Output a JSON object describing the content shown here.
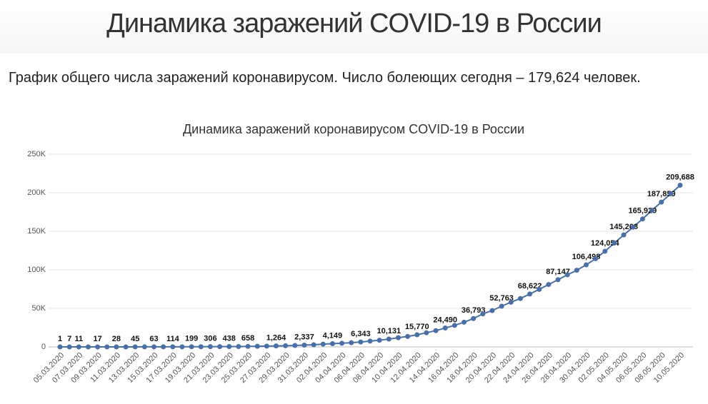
{
  "page": {
    "title": "Динамика заражений COVID-19 в России",
    "subtitle": "График общего числа заражений коронавирусом. Число болеющих сегодня – 179,624 человек."
  },
  "chart_data": {
    "type": "line",
    "title": "Динамика заражений коронавирусом COVID-19 в России",
    "categories": [
      "05.03.2020",
      null,
      "07.03.2020",
      null,
      "09.03.2020",
      null,
      "11.03.2020",
      null,
      "13.03.2020",
      null,
      "15.03.2020",
      null,
      "17.03.2020",
      null,
      "19.03.2020",
      null,
      "21.03.2020",
      null,
      "23.03.2020",
      null,
      "25.03.2020",
      null,
      "27.03.2020",
      null,
      "29.03.2020",
      null,
      "31.03.2020",
      null,
      "02.04.2020",
      null,
      "04.04.2020",
      null,
      "06.04.2020",
      null,
      "08.04.2020",
      null,
      "10.04.2020",
      null,
      "12.04.2020",
      null,
      "14.04.2020",
      null,
      "16.04.2020",
      null,
      "18.04.2020",
      null,
      "20.04.2020",
      null,
      "22.04.2020",
      null,
      "24.04.2020",
      null,
      "26.04.2020",
      null,
      "28.04.2020",
      null,
      "30.04.2020",
      null,
      "02.05.2020",
      null,
      "04.05.2020",
      null,
      "06.05.2020",
      null,
      "08.05.2020",
      null,
      "10.05.2020"
    ],
    "values": [
      1,
      7,
      11,
      14,
      17,
      20,
      28,
      34,
      45,
      59,
      63,
      93,
      114,
      147,
      199,
      253,
      306,
      367,
      438,
      495,
      658,
      840,
      1036,
      1264,
      1534,
      1836,
      2337,
      2777,
      3548,
      4149,
      4731,
      5389,
      6343,
      7497,
      8672,
      10131,
      11917,
      13584,
      15770,
      18328,
      21102,
      24490,
      27938,
      32008,
      36793,
      42853,
      47121,
      52763,
      57999,
      62773,
      68622,
      74588,
      80949,
      87147,
      93558,
      99399,
      106498,
      114431,
      124054,
      134687,
      145268,
      155370,
      165929,
      177160,
      187859,
      198676,
      209688
    ],
    "value_labels": [
      "1",
      "7",
      "11",
      null,
      "17",
      null,
      "28",
      null,
      "45",
      null,
      "63",
      null,
      "114",
      null,
      "199",
      null,
      "306",
      null,
      "438",
      null,
      "658",
      null,
      null,
      "1,264",
      null,
      null,
      "2,337",
      null,
      null,
      "4,149",
      null,
      null,
      "6,343",
      null,
      null,
      "10,131",
      null,
      null,
      "15,770",
      null,
      null,
      "24,490",
      null,
      null,
      "36,793",
      null,
      null,
      "52,763",
      null,
      null,
      "68,622",
      null,
      null,
      "87,147",
      null,
      null,
      "106,498",
      null,
      "124,054",
      null,
      "145,268",
      null,
      "165,929",
      null,
      "187,859",
      null,
      "209,688"
    ],
    "color": "#4a6fa5",
    "ylim": [
      0,
      250000
    ],
    "yticks": [
      0,
      {
        "value": 50000,
        "label": "50K"
      },
      {
        "value": 100000,
        "label": "100K"
      },
      {
        "value": 150000,
        "label": "150K"
      },
      {
        "value": 200000,
        "label": "200K"
      },
      {
        "value": 250000,
        "label": "250K"
      }
    ],
    "grid": true
  }
}
